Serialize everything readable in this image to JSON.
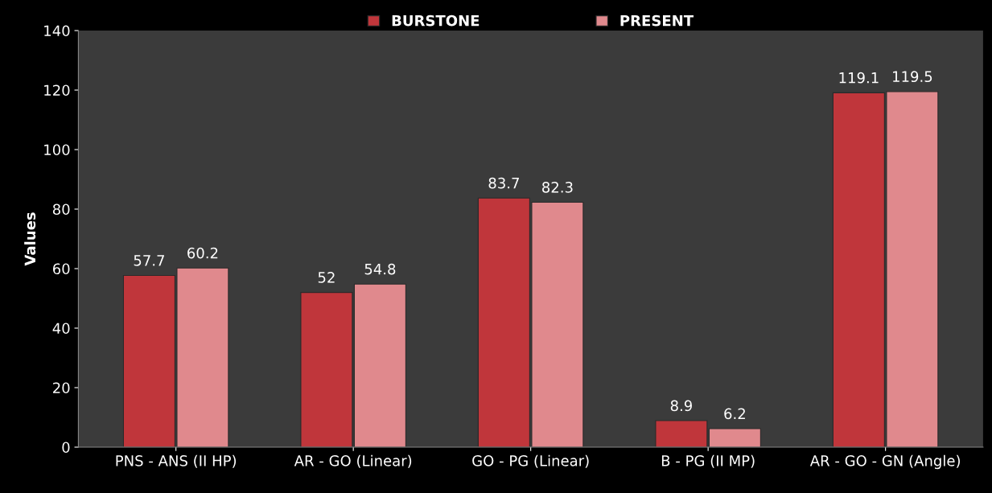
{
  "chart_data": {
    "type": "bar",
    "ylabel": "Values",
    "categories": [
      "PNS - ANS (II HP)",
      "AR - GO (Linear)",
      "GO - PG (Linear)",
      "B - PG (II MP)",
      "AR - GO - GN (Angle)"
    ],
    "series": [
      {
        "name": "BURSTONE",
        "color": "#c0363b",
        "values": [
          57.7,
          52,
          83.7,
          8.9,
          119.1
        ]
      },
      {
        "name": "PRESENT",
        "color": "#e0898d",
        "values": [
          60.2,
          54.8,
          82.3,
          6.2,
          119.5
        ]
      }
    ],
    "ylim": [
      0,
      140
    ],
    "yticks": [
      0,
      20,
      40,
      60,
      80,
      100,
      120,
      140
    ],
    "data_labels": true,
    "legend": "top",
    "grid": false
  }
}
